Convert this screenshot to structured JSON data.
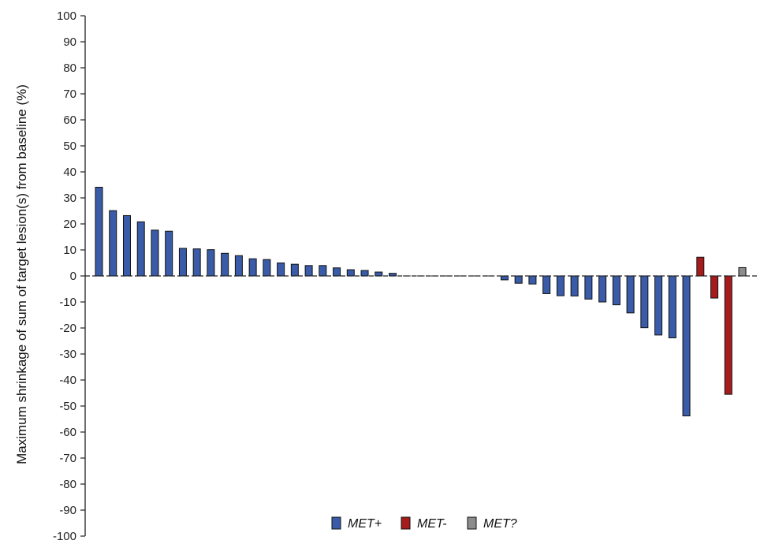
{
  "chart_data": {
    "type": "bar",
    "title": "",
    "xlabel": "",
    "ylabel": "Maximum shrinkage of sum of target lesion(s) from baseline (%)",
    "ylim": [
      -100,
      100
    ],
    "yticks": [
      100,
      90,
      80,
      70,
      60,
      50,
      40,
      30,
      20,
      10,
      0,
      -10,
      -20,
      -30,
      -40,
      -50,
      -60,
      -70,
      -80,
      -90,
      -100
    ],
    "ytick_labels": [
      "100",
      "90",
      "80",
      "70",
      "60",
      "50",
      "40",
      "30",
      "20",
      "10",
      "0",
      "-10",
      "-20",
      "-30",
      "-40",
      "-50",
      "-60",
      "-70",
      "-80",
      "-90",
      "-100"
    ],
    "grid": false,
    "legend_position": "bottom-center",
    "legend": [
      {
        "key": "MET+",
        "label": "MET+",
        "color": "#3a5ba8"
      },
      {
        "key": "MET-",
        "label": "MET-",
        "color": "#a51c1c"
      },
      {
        "key": "MET?",
        "label": "MET?",
        "color": "#8c8c8c"
      }
    ],
    "values": [
      34.1,
      25.1,
      23.2,
      20.8,
      17.6,
      17.2,
      10.6,
      10.4,
      10.1,
      8.7,
      7.8,
      6.6,
      6.3,
      5.0,
      4.5,
      4.0,
      4.0,
      3.1,
      2.4,
      2.1,
      1.5,
      1.0,
      0,
      0,
      0,
      0,
      0,
      0,
      0,
      -1.5,
      -2.8,
      -3.1,
      -6.8,
      -7.6,
      -7.7,
      -8.9,
      -10.0,
      -11.1,
      -14.2,
      -19.9,
      -22.7,
      -23.8,
      -53.8,
      7.2,
      -8.5,
      -45.5,
      3.2
    ],
    "groups": [
      "MET+",
      "MET+",
      "MET+",
      "MET+",
      "MET+",
      "MET+",
      "MET+",
      "MET+",
      "MET+",
      "MET+",
      "MET+",
      "MET+",
      "MET+",
      "MET+",
      "MET+",
      "MET+",
      "MET+",
      "MET+",
      "MET+",
      "MET+",
      "MET+",
      "MET+",
      "MET+",
      "MET+",
      "MET+",
      "MET+",
      "MET+",
      "MET+",
      "MET+",
      "MET+",
      "MET+",
      "MET+",
      "MET+",
      "MET+",
      "MET+",
      "MET+",
      "MET+",
      "MET+",
      "MET+",
      "MET+",
      "MET+",
      "MET+",
      "MET+",
      "MET-",
      "MET-",
      "MET-",
      "MET?"
    ]
  }
}
